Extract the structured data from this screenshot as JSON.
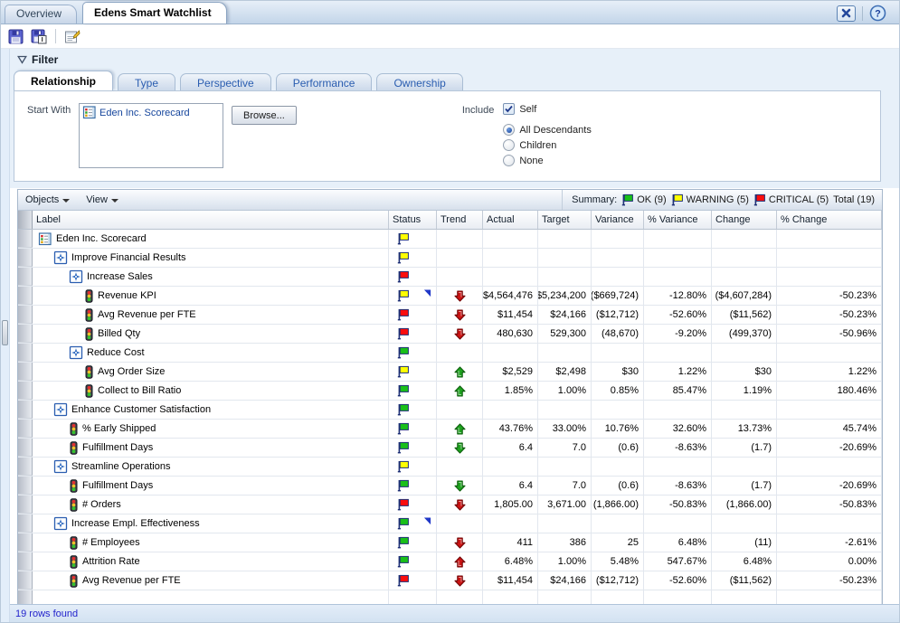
{
  "window": {
    "tabs": [
      {
        "label": "Overview",
        "active": false
      },
      {
        "label": "Edens Smart Watchlist",
        "active": true
      }
    ],
    "controls": [
      {
        "icon": "close-icon"
      },
      {
        "icon": "help-icon"
      }
    ]
  },
  "toolbar": {
    "buttons": [
      {
        "icon": "save-icon"
      },
      {
        "icon": "save-as-icon"
      },
      {
        "icon": "edit-properties-icon"
      }
    ]
  },
  "filter": {
    "title": "Filter",
    "tabs": [
      {
        "label": "Relationship",
        "active": true
      },
      {
        "label": "Type",
        "active": false
      },
      {
        "label": "Perspective",
        "active": false
      },
      {
        "label": "Performance",
        "active": false
      },
      {
        "label": "Ownership",
        "active": false
      }
    ],
    "start_with": {
      "label": "Start With",
      "item": {
        "icon": "scorecard-icon",
        "label": "Eden Inc. Scorecard"
      },
      "browse_label": "Browse..."
    },
    "include": {
      "label": "Include",
      "self_checkbox": {
        "label": "Self",
        "checked": true
      },
      "radios": [
        {
          "label": "All Descendants",
          "selected": true
        },
        {
          "label": "Children",
          "selected": false
        },
        {
          "label": "None",
          "selected": false
        }
      ]
    }
  },
  "grid": {
    "menus": [
      {
        "label": "Objects"
      },
      {
        "label": "View"
      }
    ],
    "summary": {
      "label": "Summary:",
      "items": [
        {
          "flag": "green",
          "label": "OK (9)"
        },
        {
          "flag": "yellow",
          "label": "WARNING (5)"
        },
        {
          "flag": "red",
          "label": "CRITICAL (5)"
        }
      ],
      "total": "Total (19)"
    },
    "columns": [
      "Label",
      "Status",
      "Trend",
      "Actual",
      "Target",
      "Variance",
      "% Variance",
      "Change",
      "% Change"
    ],
    "rows": [
      {
        "label": "Eden Inc. Scorecard",
        "level": 0,
        "icon": "scorecard",
        "status": "yellow",
        "note": false,
        "trend": "",
        "actual": "",
        "target": "",
        "variance": "",
        "pct_variance": "",
        "change": "",
        "pct_change": ""
      },
      {
        "label": "Improve Financial Results",
        "level": 1,
        "icon": "objective",
        "status": "yellow",
        "note": false,
        "trend": "",
        "actual": "",
        "target": "",
        "variance": "",
        "pct_variance": "",
        "change": "",
        "pct_change": ""
      },
      {
        "label": "Increase Sales",
        "level": 2,
        "icon": "objective",
        "status": "red",
        "note": false,
        "trend": "",
        "actual": "",
        "target": "",
        "variance": "",
        "pct_variance": "",
        "change": "",
        "pct_change": ""
      },
      {
        "label": "Revenue KPI",
        "level": 3,
        "icon": "kpi",
        "status": "yellow",
        "note": true,
        "trend": "down-red",
        "actual": "$4,564,476",
        "target": "$5,234,200",
        "variance": "($669,724)",
        "pct_variance": "-12.80%",
        "change": "($4,607,284)",
        "pct_change": "-50.23%"
      },
      {
        "label": "Avg Revenue per FTE",
        "level": 3,
        "icon": "kpi",
        "status": "red",
        "note": false,
        "trend": "down-red",
        "actual": "$11,454",
        "target": "$24,166",
        "variance": "($12,712)",
        "pct_variance": "-52.60%",
        "change": "($11,562)",
        "pct_change": "-50.23%"
      },
      {
        "label": "Billed Qty",
        "level": 3,
        "icon": "kpi",
        "status": "red",
        "note": false,
        "trend": "down-red",
        "actual": "480,630",
        "target": "529,300",
        "variance": "(48,670)",
        "pct_variance": "-9.20%",
        "change": "(499,370)",
        "pct_change": "-50.96%"
      },
      {
        "label": "Reduce Cost",
        "level": 2,
        "icon": "objective",
        "status": "green",
        "note": false,
        "trend": "",
        "actual": "",
        "target": "",
        "variance": "",
        "pct_variance": "",
        "change": "",
        "pct_change": ""
      },
      {
        "label": "Avg Order Size",
        "level": 3,
        "icon": "kpi",
        "status": "yellow",
        "note": false,
        "trend": "up-green",
        "actual": "$2,529",
        "target": "$2,498",
        "variance": "$30",
        "pct_variance": "1.22%",
        "change": "$30",
        "pct_change": "1.22%"
      },
      {
        "label": "Collect to Bill Ratio",
        "level": 3,
        "icon": "kpi",
        "status": "green",
        "note": false,
        "trend": "up-green",
        "actual": "1.85%",
        "target": "1.00%",
        "variance": "0.85%",
        "pct_variance": "85.47%",
        "change": "1.19%",
        "pct_change": "180.46%"
      },
      {
        "label": "Enhance Customer Satisfaction",
        "level": 1,
        "icon": "objective",
        "status": "green",
        "note": false,
        "trend": "",
        "actual": "",
        "target": "",
        "variance": "",
        "pct_variance": "",
        "change": "",
        "pct_change": ""
      },
      {
        "label": "% Early Shipped",
        "level": 2,
        "icon": "kpi",
        "status": "green",
        "note": false,
        "trend": "up-green",
        "actual": "43.76%",
        "target": "33.00%",
        "variance": "10.76%",
        "pct_variance": "32.60%",
        "change": "13.73%",
        "pct_change": "45.74%"
      },
      {
        "label": "Fulfillment Days",
        "level": 2,
        "icon": "kpi",
        "status": "green",
        "note": false,
        "trend": "down-green",
        "actual": "6.4",
        "target": "7.0",
        "variance": "(0.6)",
        "pct_variance": "-8.63%",
        "change": "(1.7)",
        "pct_change": "-20.69%"
      },
      {
        "label": "Streamline Operations",
        "level": 1,
        "icon": "objective",
        "status": "yellow",
        "note": false,
        "trend": "",
        "actual": "",
        "target": "",
        "variance": "",
        "pct_variance": "",
        "change": "",
        "pct_change": ""
      },
      {
        "label": "Fulfillment Days",
        "level": 2,
        "icon": "kpi",
        "status": "green",
        "note": false,
        "trend": "down-green",
        "actual": "6.4",
        "target": "7.0",
        "variance": "(0.6)",
        "pct_variance": "-8.63%",
        "change": "(1.7)",
        "pct_change": "-20.69%"
      },
      {
        "label": "# Orders",
        "level": 2,
        "icon": "kpi",
        "status": "red",
        "note": false,
        "trend": "down-red",
        "actual": "1,805.00",
        "target": "3,671.00",
        "variance": "(1,866.00)",
        "pct_variance": "-50.83%",
        "change": "(1,866.00)",
        "pct_change": "-50.83%"
      },
      {
        "label": "Increase Empl. Effectiveness",
        "level": 1,
        "icon": "objective",
        "status": "green",
        "note": true,
        "trend": "",
        "actual": "",
        "target": "",
        "variance": "",
        "pct_variance": "",
        "change": "",
        "pct_change": ""
      },
      {
        "label": "# Employees",
        "level": 2,
        "icon": "kpi",
        "status": "green",
        "note": false,
        "trend": "down-red",
        "actual": "411",
        "target": "386",
        "variance": "25",
        "pct_variance": "6.48%",
        "change": "(11)",
        "pct_change": "-2.61%"
      },
      {
        "label": "Attrition Rate",
        "level": 2,
        "icon": "kpi",
        "status": "green",
        "note": false,
        "trend": "up-red",
        "actual": "6.48%",
        "target": "1.00%",
        "variance": "5.48%",
        "pct_variance": "547.67%",
        "change": "6.48%",
        "pct_change": "0.00%"
      },
      {
        "label": "Avg Revenue per FTE",
        "level": 2,
        "icon": "kpi",
        "status": "red",
        "note": false,
        "trend": "down-red",
        "actual": "$11,454",
        "target": "$24,166",
        "variance": "($12,712)",
        "pct_variance": "-52.60%",
        "change": "($11,562)",
        "pct_change": "-50.23%"
      }
    ]
  },
  "footer": {
    "status": "19 rows found"
  },
  "colors": {
    "flag_green": "#19c019",
    "flag_yellow": "#ffff00",
    "flag_red": "#fb0d0d",
    "flag_pole": "#1f3076",
    "trend_green": "#1fa31f",
    "trend_green_dark": "#0a5c0a",
    "trend_red": "#cc1414",
    "trend_red_dark": "#6e0000",
    "note_blue": "#2038c8"
  }
}
